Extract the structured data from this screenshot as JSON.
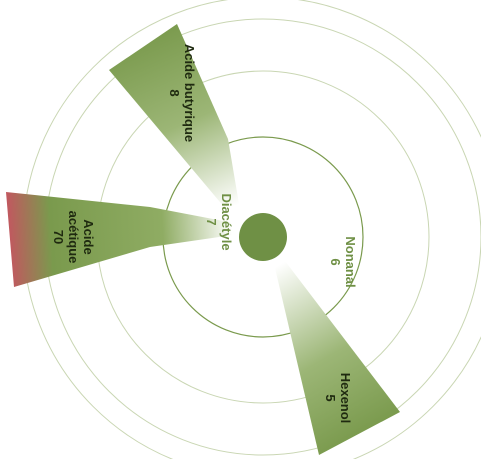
{
  "chart_data": {
    "type": "radial-bar",
    "colors": {
      "bar": "#7a9a4d",
      "high_value": "#d04a63",
      "ring": "#c9d6b3",
      "inner_ring": "#7a9a4d",
      "center": "#6f9045",
      "label_dark": "#1f2a10",
      "label_inner": "#6f9045"
    },
    "rings": 4,
    "series": [
      {
        "label": "Acide butyrique",
        "value": "8"
      },
      {
        "label": "Acide acétique",
        "value": "70"
      },
      {
        "label": "Diacétyle",
        "value": "7"
      },
      {
        "label": "Nonanal",
        "value": "6"
      },
      {
        "label": "Hexenol",
        "value": "5"
      }
    ]
  }
}
